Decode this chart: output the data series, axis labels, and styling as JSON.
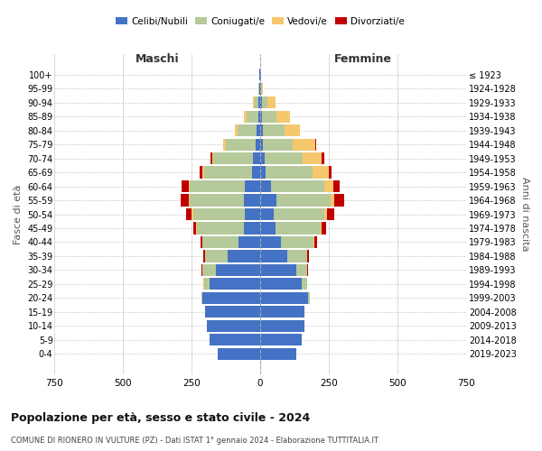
{
  "age_groups": [
    "0-4",
    "5-9",
    "10-14",
    "15-19",
    "20-24",
    "25-29",
    "30-34",
    "35-39",
    "40-44",
    "45-49",
    "50-54",
    "55-59",
    "60-64",
    "65-69",
    "70-74",
    "75-79",
    "80-84",
    "85-89",
    "90-94",
    "95-99",
    "100+"
  ],
  "birth_years": [
    "2019-2023",
    "2014-2018",
    "2009-2013",
    "2004-2008",
    "1999-2003",
    "1994-1998",
    "1989-1993",
    "1984-1988",
    "1979-1983",
    "1974-1978",
    "1969-1973",
    "1964-1968",
    "1959-1963",
    "1954-1958",
    "1949-1953",
    "1944-1948",
    "1939-1943",
    "1934-1938",
    "1929-1933",
    "1924-1928",
    "≤ 1923"
  ],
  "maschi": {
    "celibi": [
      155,
      185,
      195,
      200,
      210,
      185,
      160,
      120,
      80,
      60,
      55,
      60,
      55,
      30,
      25,
      15,
      12,
      8,
      5,
      3,
      2
    ],
    "coniugati": [
      0,
      0,
      0,
      2,
      5,
      20,
      50,
      80,
      130,
      170,
      190,
      195,
      200,
      175,
      145,
      110,
      70,
      40,
      15,
      4,
      1
    ],
    "vedove": [
      0,
      0,
      0,
      0,
      0,
      1,
      1,
      1,
      2,
      3,
      5,
      5,
      5,
      5,
      5,
      10,
      10,
      10,
      5,
      0,
      0
    ],
    "divorziate": [
      0,
      0,
      0,
      0,
      0,
      1,
      2,
      5,
      5,
      10,
      20,
      30,
      25,
      10,
      5,
      0,
      0,
      0,
      0,
      0,
      0
    ]
  },
  "femmine": {
    "nubili": [
      130,
      150,
      160,
      160,
      175,
      150,
      130,
      100,
      75,
      55,
      50,
      60,
      40,
      20,
      15,
      10,
      10,
      8,
      5,
      3,
      2
    ],
    "coniugate": [
      0,
      0,
      0,
      2,
      5,
      20,
      40,
      70,
      120,
      165,
      185,
      195,
      195,
      170,
      140,
      110,
      80,
      50,
      20,
      3,
      0
    ],
    "vedove": [
      0,
      0,
      0,
      0,
      0,
      1,
      1,
      2,
      3,
      5,
      10,
      15,
      30,
      60,
      70,
      80,
      55,
      50,
      30,
      5,
      1
    ],
    "divorziate": [
      0,
      0,
      0,
      0,
      0,
      1,
      2,
      5,
      8,
      15,
      25,
      35,
      25,
      10,
      10,
      5,
      0,
      0,
      0,
      0,
      0
    ]
  },
  "colors": {
    "celibi": "#4472c4",
    "coniugati": "#b5c99a",
    "vedove": "#f5c86e",
    "divorziate": "#c00000"
  },
  "title": "Popolazione per età, sesso e stato civile - 2024",
  "subtitle": "COMUNE DI RIONERO IN VULTURE (PZ) - Dati ISTAT 1° gennaio 2024 - Elaborazione TUTTITALIA.IT",
  "xlabel_left": "Maschi",
  "xlabel_right": "Femmine",
  "ylabel_left": "Fasce di età",
  "ylabel_right": "Anni di nascita",
  "legend_labels": [
    "Celibi/Nubili",
    "Coniugati/e",
    "Vedovi/e",
    "Divorziati/e"
  ],
  "xlim": 750,
  "bg_color": "#ffffff",
  "grid_color": "#cccccc",
  "bar_height": 0.85
}
